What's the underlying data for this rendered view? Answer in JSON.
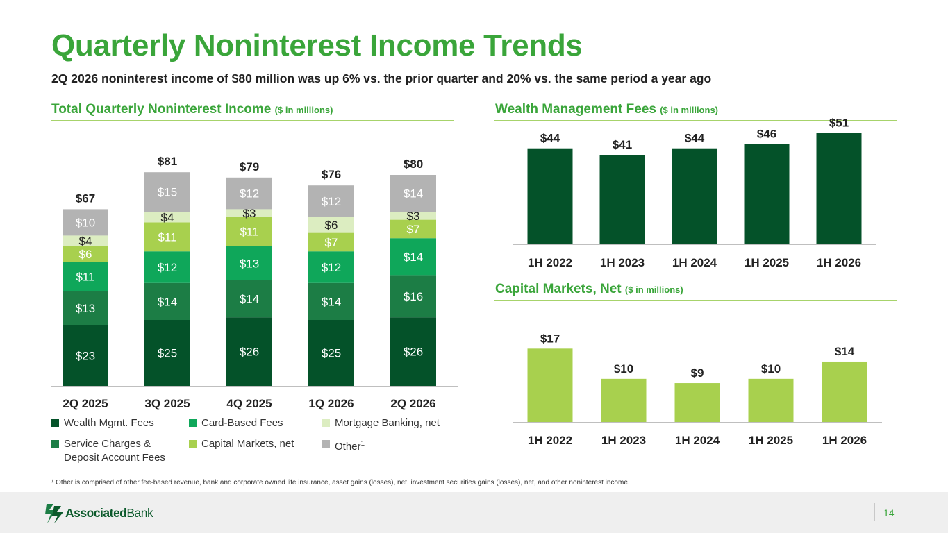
{
  "page": {
    "title": "Quarterly Noninterest Income Trends",
    "subtitle": "2Q 2026 noninterest income of $80 million was up 6% vs. the prior quarter and 20% vs. the same period a year ago",
    "footnote": "¹ Other is comprised of other fee-based revenue, bank and corporate owned life insurance, asset gains (losses), net, investment securities gains (losses), net, and other noninterest income.",
    "page_number": "14",
    "logo": {
      "bold": "Associated",
      "regular": "Bank",
      "icon": "associated-bank-chevron-logo-icon"
    }
  },
  "sections": {
    "total": {
      "title": "Total Quarterly Noninterest Income",
      "unit": "($ in millions)"
    },
    "wealth": {
      "title": "Wealth Management Fees",
      "unit": "($ in millions)"
    },
    "capital": {
      "title": "Capital Markets, Net",
      "unit": "($ in millions)"
    }
  },
  "legend": {
    "items": [
      {
        "label": "Wealth Mgmt. Fees",
        "color": "#045229"
      },
      {
        "label": "Card-Based Fees",
        "color": "#0fa75a"
      },
      {
        "label": "Mortgage Banking, net",
        "color": "#dcedc1"
      },
      {
        "label": "Service Charges & Deposit Account Fees",
        "color": "#1c7d45"
      },
      {
        "label": "Capital Markets, net",
        "color": "#a8d04e"
      },
      {
        "label": "Other",
        "superscript": "1",
        "color": "#b3b3b3"
      }
    ]
  },
  "chart_data": [
    {
      "type": "bar",
      "stacked": true,
      "categories": [
        "2Q 2025",
        "3Q 2025",
        "4Q 2025",
        "1Q 2026",
        "2Q 2026"
      ],
      "series": [
        {
          "name": "Wealth Mgmt. Fees",
          "values": [
            23,
            25,
            26,
            25,
            26
          ],
          "labels": [
            "$23",
            "$25",
            "$26",
            "$25",
            "$26"
          ],
          "color": "#045229",
          "label_color": "#ffffff"
        },
        {
          "name": "Service Charges & Deposit Account Fees",
          "values": [
            13,
            14,
            14,
            14,
            16
          ],
          "labels": [
            "$13",
            "$14",
            "$14",
            "$14",
            "$16"
          ],
          "color": "#1c7d45",
          "label_color": "#ffffff"
        },
        {
          "name": "Card-Based Fees",
          "values": [
            11,
            12,
            13,
            12,
            14
          ],
          "labels": [
            "$11",
            "$12",
            "$13",
            "$12",
            "$14"
          ],
          "color": "#0fa75a",
          "label_color": "#ffffff"
        },
        {
          "name": "Capital Markets, net",
          "values": [
            6,
            11,
            11,
            7,
            7
          ],
          "labels": [
            "$6",
            "$11",
            "$11",
            "$7",
            "$7"
          ],
          "color": "#a8d04e",
          "label_color": "#ffffff"
        },
        {
          "name": "Mortgage Banking, net",
          "values": [
            4,
            4,
            3,
            6,
            3
          ],
          "labels": [
            "$4",
            "$4",
            "$3",
            "$6",
            "$3"
          ],
          "color": "#dcedc1",
          "label_color": "#222222"
        },
        {
          "name": "Other",
          "values": [
            10,
            15,
            12,
            12,
            14
          ],
          "labels": [
            "$10",
            "$15",
            "$12",
            "$12",
            "$14"
          ],
          "color": "#b3b3b3",
          "label_color": "#ffffff"
        }
      ],
      "totals": [
        67,
        81,
        79,
        76,
        80
      ],
      "total_labels": [
        "$67",
        "$81",
        "$79",
        "$76",
        "$80"
      ],
      "ylim": [
        0,
        85
      ],
      "grid": false
    },
    {
      "type": "bar",
      "categories": [
        "1H 2022",
        "1H 2023",
        "1H 2024",
        "1H 2025",
        "1H 2026"
      ],
      "values": [
        44,
        41,
        44,
        46,
        51
      ],
      "labels": [
        "$44",
        "$41",
        "$44",
        "$46",
        "$51"
      ],
      "color": "#045229",
      "ylim": [
        0,
        56
      ],
      "grid": false
    },
    {
      "type": "bar",
      "categories": [
        "1H 2022",
        "1H 2023",
        "1H 2024",
        "1H 2025",
        "1H 2026"
      ],
      "values": [
        17,
        10,
        9,
        10,
        14
      ],
      "labels": [
        "$17",
        "$10",
        "$9",
        "$10",
        "$14"
      ],
      "color": "#a8d04e",
      "ylim": [
        0,
        18.5
      ],
      "grid": false
    }
  ]
}
